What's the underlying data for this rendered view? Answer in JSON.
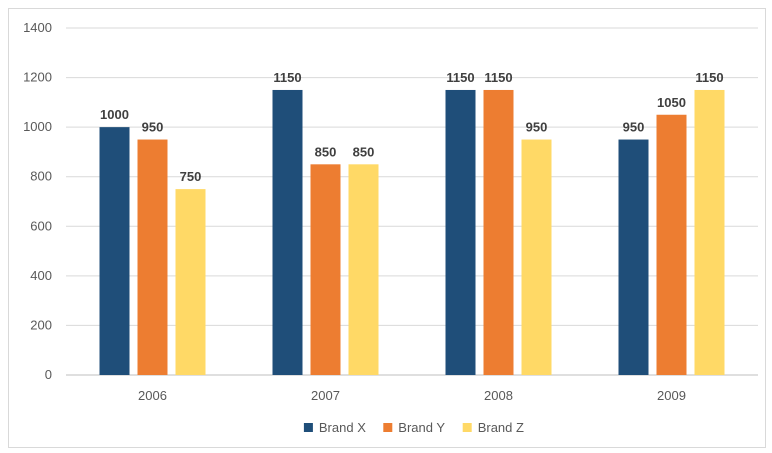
{
  "chart_data": {
    "type": "bar",
    "title": "",
    "xlabel": "",
    "ylabel": "",
    "categories": [
      "2006",
      "2007",
      "2008",
      "2009"
    ],
    "series": [
      {
        "name": "Brand X",
        "color": "#1f4e79",
        "values": [
          1000,
          1150,
          1150,
          950
        ]
      },
      {
        "name": "Brand Y",
        "color": "#ed7d31",
        "values": [
          950,
          850,
          1150,
          1050
        ]
      },
      {
        "name": "Brand Z",
        "color": "#ffd966",
        "values": [
          750,
          850,
          950,
          1150
        ]
      }
    ],
    "ylim": [
      0,
      1400
    ],
    "yticks": [
      0,
      200,
      400,
      600,
      800,
      1000,
      1200,
      1400
    ],
    "grid": true,
    "legend": "bottom",
    "data_labels": true
  }
}
